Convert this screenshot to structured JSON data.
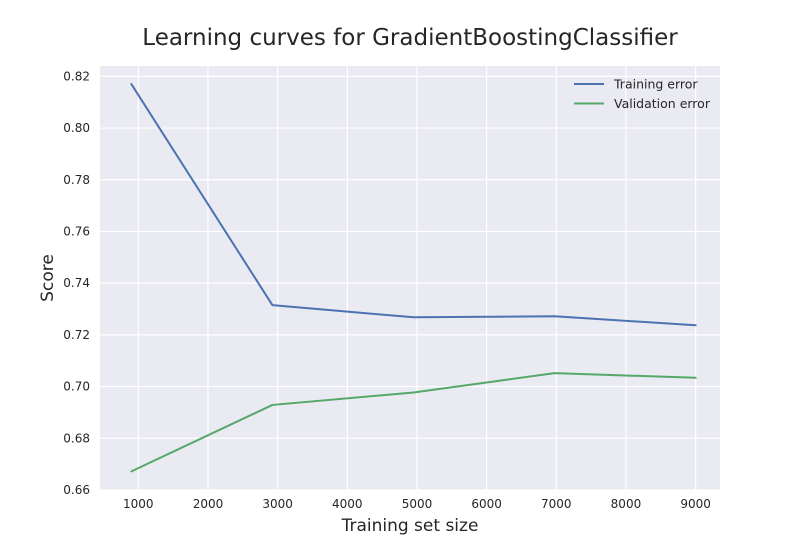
{
  "chart_data": {
    "type": "line",
    "title": "Learning curves for GradientBoostingClassifier",
    "xlabel": "Training set size",
    "ylabel": "Score",
    "xlim": [
      450,
      9350
    ],
    "ylim": [
      0.66,
      0.824
    ],
    "xticks": [
      1000,
      2000,
      3000,
      4000,
      5000,
      6000,
      7000,
      8000,
      9000
    ],
    "xtick_labels": [
      "1000",
      "2000",
      "3000",
      "4000",
      "5000",
      "6000",
      "7000",
      "8000",
      "9000"
    ],
    "yticks": [
      0.66,
      0.68,
      0.7,
      0.72,
      0.74,
      0.76,
      0.78,
      0.8,
      0.82
    ],
    "ytick_labels": [
      "0.66",
      "0.68",
      "0.70",
      "0.72",
      "0.74",
      "0.76",
      "0.78",
      "0.80",
      "0.82"
    ],
    "grid": true,
    "legend_position": "top-right",
    "series": [
      {
        "name": "Training error",
        "color": "#4c72b0",
        "x": [
          900,
          2925,
          4950,
          6975,
          9000
        ],
        "y": [
          0.817,
          0.7315,
          0.7268,
          0.7272,
          0.7237
        ]
      },
      {
        "name": "Validation error",
        "color": "#55a868",
        "x": [
          900,
          2925,
          4950,
          6975,
          9000
        ],
        "y": [
          0.6672,
          0.6929,
          0.6977,
          0.7052,
          0.7034
        ]
      }
    ]
  }
}
